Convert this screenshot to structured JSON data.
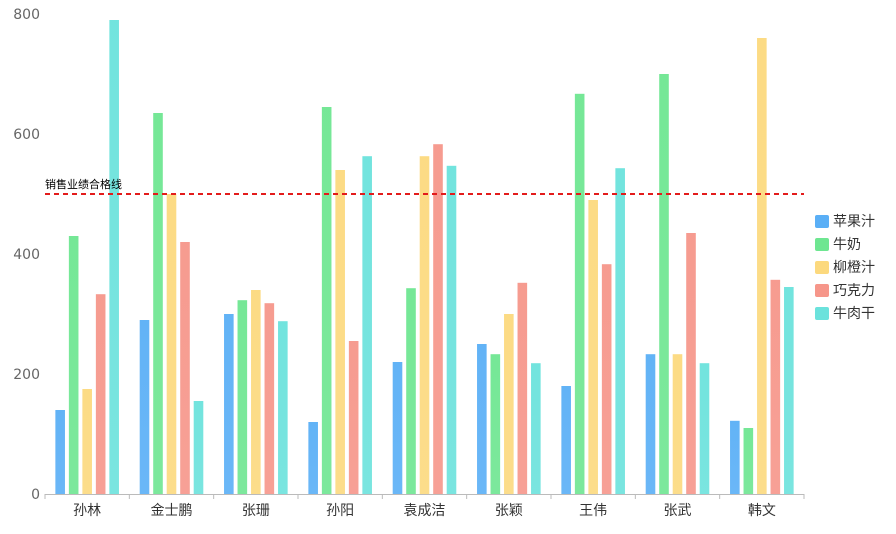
{
  "chart_data": {
    "type": "bar",
    "title": "",
    "xlabel": "",
    "ylabel": "",
    "ylim": [
      0,
      800
    ],
    "yticks": [
      0,
      200,
      400,
      600,
      800
    ],
    "grid": false,
    "legend_position": "right",
    "categories": [
      "孙林",
      "金士鹏",
      "张珊",
      "孙阳",
      "袁成洁",
      "张颖",
      "王伟",
      "张武",
      "韩文"
    ],
    "series": [
      {
        "name": "苹果汁",
        "color": "#5aaff6",
        "values": [
          140,
          290,
          300,
          120,
          220,
          250,
          180,
          233,
          122
        ]
      },
      {
        "name": "牛奶",
        "color": "#6ee691",
        "values": [
          430,
          635,
          323,
          645,
          343,
          233,
          667,
          700,
          110
        ]
      },
      {
        "name": "柳橙汁",
        "color": "#fcd97e",
        "values": [
          175,
          500,
          340,
          540,
          563,
          300,
          490,
          233,
          760
        ]
      },
      {
        "name": "巧克力",
        "color": "#f6968a",
        "values": [
          333,
          420,
          318,
          255,
          583,
          352,
          383,
          435,
          357
        ]
      },
      {
        "name": "牛肉干",
        "color": "#6be2dc",
        "values": [
          790,
          155,
          288,
          563,
          547,
          218,
          543,
          218,
          345
        ]
      }
    ],
    "reference_line": {
      "label": "销售业绩合格线",
      "value": 500,
      "color": "#e31b1b",
      "style": "dashed"
    }
  }
}
